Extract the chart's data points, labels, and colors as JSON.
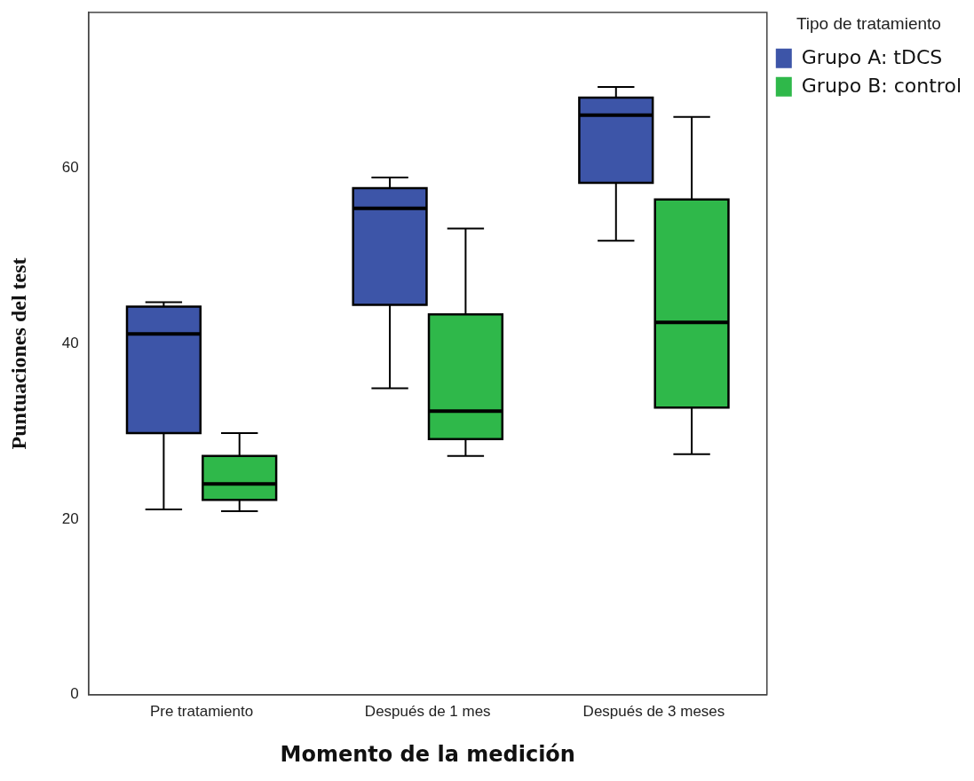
{
  "chart_data": {
    "type": "box",
    "xlabel": "Momento de la medición",
    "ylabel": "Puntuaciones del test",
    "legend_title": "Tipo de tratamiento",
    "categories": [
      "Pre tratamiento",
      "Después de 1 mes",
      "Después de 3 meses"
    ],
    "series": [
      {
        "name": "Grupo A: tDCS",
        "color": "#3d55a8",
        "boxes": [
          {
            "low": 21.1,
            "q1": 29.8,
            "median": 41.1,
            "q3": 44.2,
            "high": 44.7
          },
          {
            "low": 34.9,
            "q1": 44.4,
            "median": 55.4,
            "q3": 57.7,
            "high": 58.9
          },
          {
            "low": 51.7,
            "q1": 58.3,
            "median": 66.0,
            "q3": 68.0,
            "high": 69.2
          }
        ]
      },
      {
        "name": "Grupo B: control",
        "color": "#2fb84a",
        "boxes": [
          {
            "low": 20.9,
            "q1": 22.2,
            "median": 24.0,
            "q3": 27.2,
            "high": 29.8
          },
          {
            "low": 27.2,
            "q1": 29.1,
            "median": 32.3,
            "q3": 43.3,
            "high": 53.1
          },
          {
            "low": 27.4,
            "q1": 32.7,
            "median": 42.4,
            "q3": 56.4,
            "high": 65.8
          }
        ]
      }
    ],
    "ylim": [
      0,
      77.7
    ],
    "yticks": [
      0,
      20,
      40,
      60
    ],
    "grid": false,
    "legend": "right"
  }
}
